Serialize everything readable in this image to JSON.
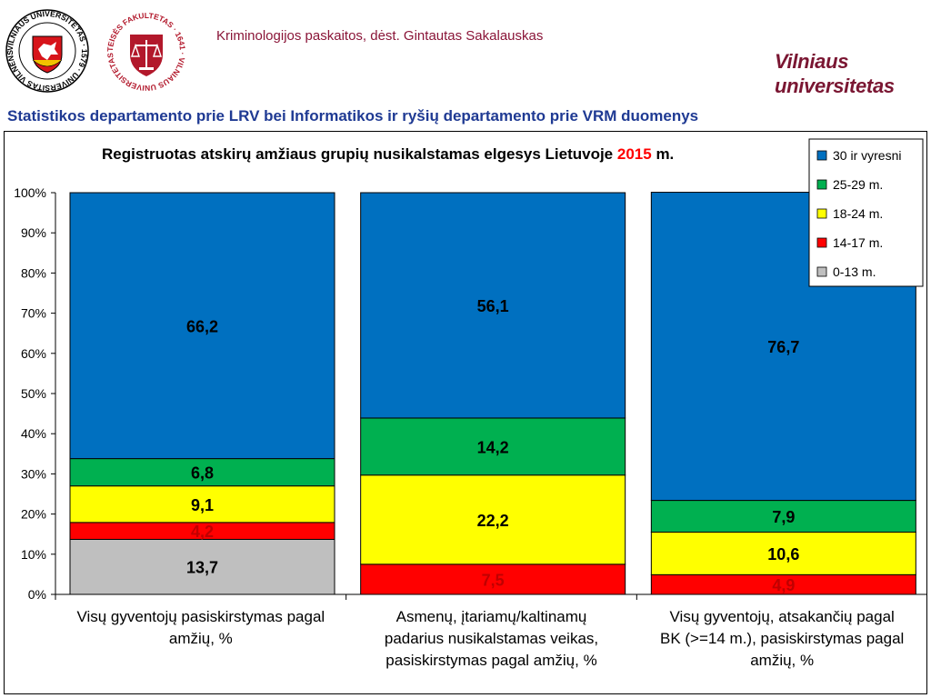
{
  "header": {
    "lecture_line": "Kriminologijos paskaitos, dėst. Gintautas Sakalauskas",
    "university_line1": "Vilniaus",
    "university_line2": "universitetas",
    "source_line": "Statistikos departamento prie LRV bei Informatikos ir ryšių departamento prie VRM duomenys"
  },
  "logos": {
    "vu_seal_text": "VILNIAUS UNIVERSITETAS · 1579 · UNIVERSITAS VILNENSIS",
    "law_faculty_text": "TEISĖS FAKULTETAS · 1641 · VILNIAUS UNIVERSITETAS"
  },
  "colors": {
    "s30": "#0070c0",
    "s25": "#00b050",
    "s18": "#ffff00",
    "s14": "#ff0000",
    "s0": "#bfbfbf",
    "title_year": "#ff0000",
    "label_dark": "#000000",
    "label_red": "#c00000",
    "source_text": "#1f3a93"
  },
  "chart_data": {
    "type": "bar",
    "stacked": true,
    "percent": true,
    "title": "Registruotas atskirų amžiaus grupių  nusikalstamas elgesys Lietuvoje",
    "title_year": "2015",
    "title_suffix": "m.",
    "y_ticks": [
      "0%",
      "10%",
      "20%",
      "30%",
      "40%",
      "50%",
      "60%",
      "70%",
      "80%",
      "90%",
      "100%"
    ],
    "ylim": [
      0,
      100
    ],
    "grid": false,
    "legend_position": "top-right",
    "categories": [
      [
        "Visų gyventojų pasiskirstymas pagal",
        "amžių, %"
      ],
      [
        "Asmenų, įtariamų/kaltinamų",
        "padarius nusikalstamas veikas,",
        "pasiskirstymas pagal amžių, %"
      ],
      [
        "Visų gyventojų, atsakančių pagal",
        "BK (>=14 m.), pasiskirstymas pagal",
        "amžių, %"
      ]
    ],
    "series": [
      {
        "name": "0-13 m.",
        "values": [
          13.7,
          0,
          0
        ],
        "labels": [
          "13,7",
          "",
          ""
        ]
      },
      {
        "name": "14-17 m.",
        "values": [
          4.2,
          7.5,
          4.9
        ],
        "labels": [
          "4,2",
          "7,5",
          "4,9"
        ]
      },
      {
        "name": "18-24 m.",
        "values": [
          9.1,
          22.2,
          10.6
        ],
        "labels": [
          "9,1",
          "22,2",
          "10,6"
        ]
      },
      {
        "name": "25-29 m.",
        "values": [
          6.8,
          14.2,
          7.9
        ],
        "labels": [
          "6,8",
          "14,2",
          "7,9"
        ]
      },
      {
        "name": "30 ir vyresni",
        "values": [
          66.2,
          56.1,
          76.7
        ],
        "labels": [
          "66,2",
          "56,1",
          "76,7"
        ]
      }
    ]
  }
}
